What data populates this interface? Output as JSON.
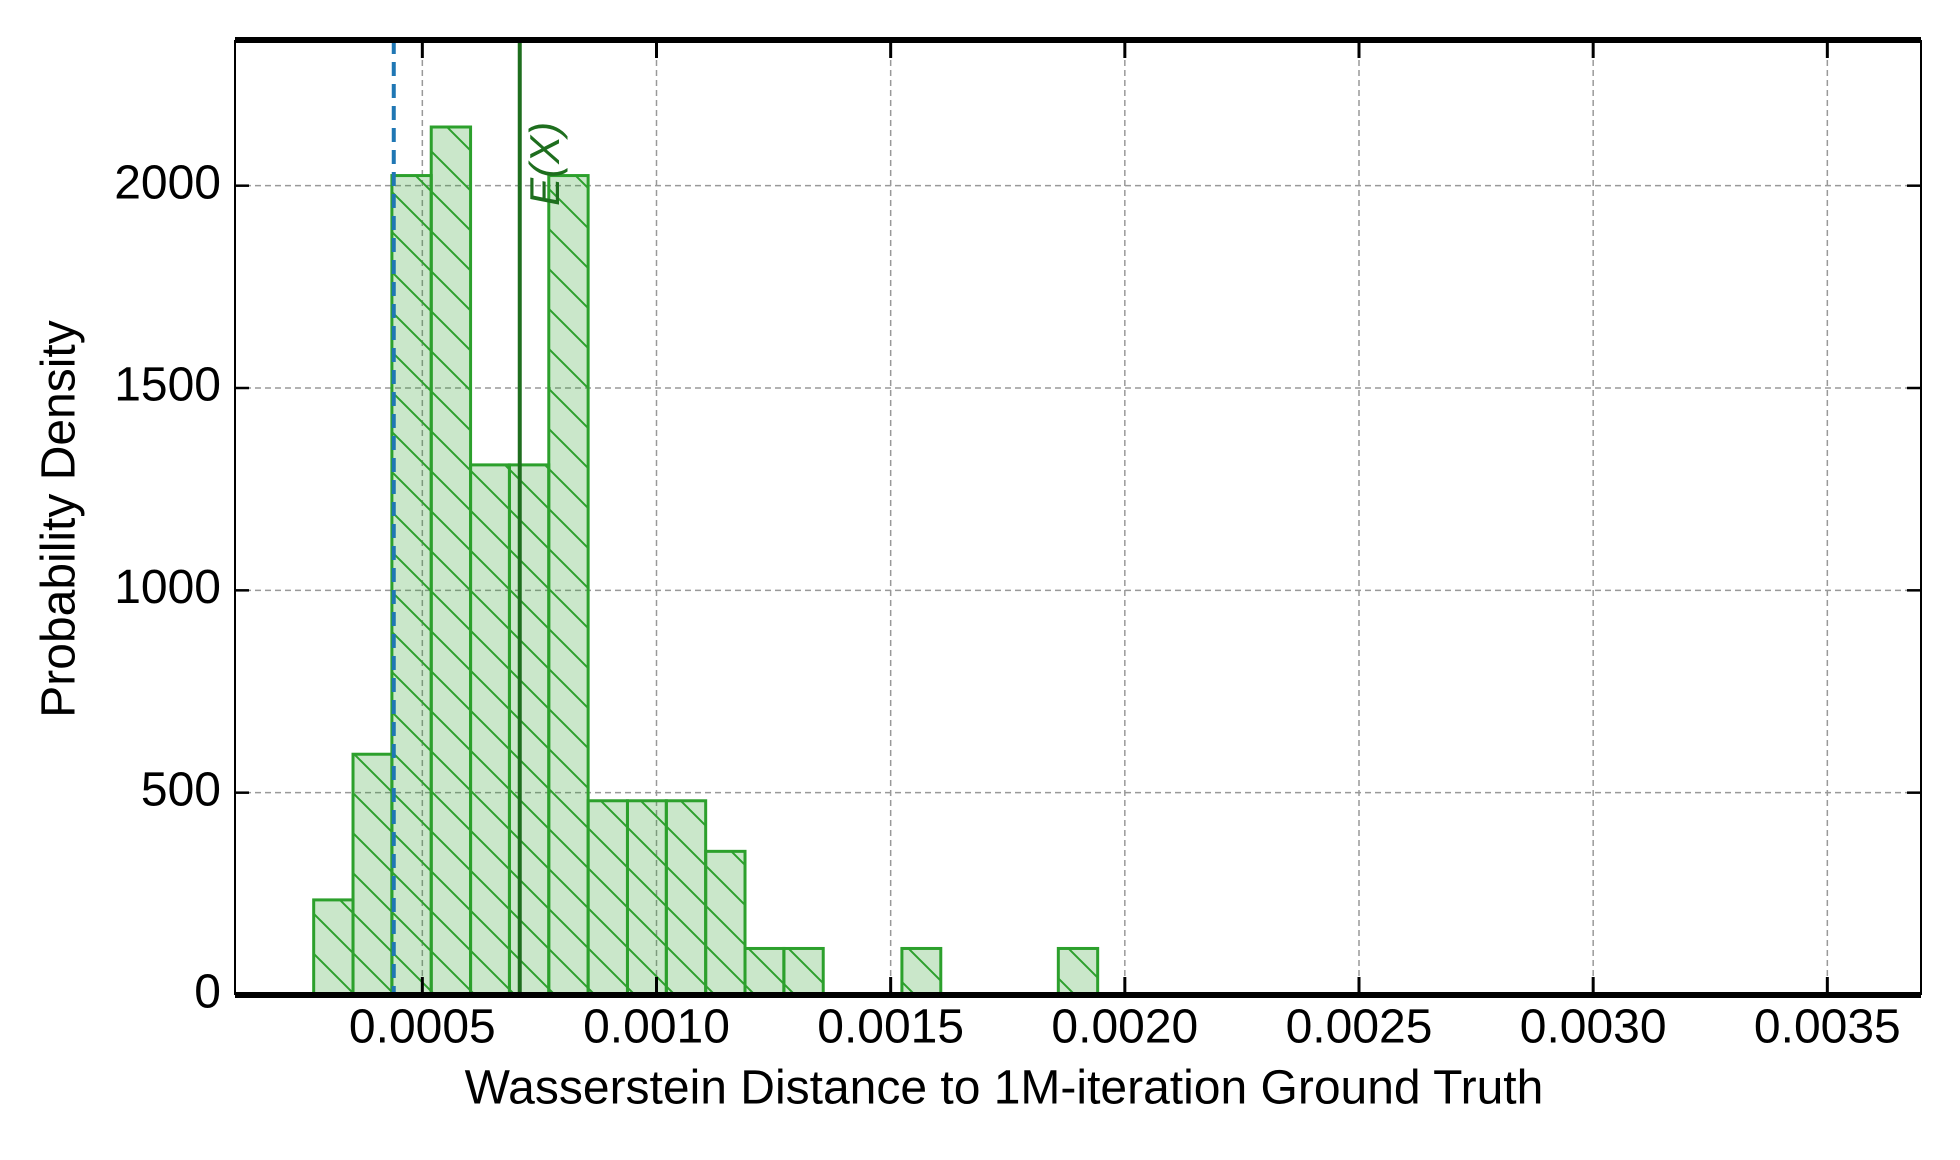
{
  "chart_data": {
    "type": "histogram",
    "xlabel": "Wasserstein Distance to 1M-iteration Ground Truth",
    "ylabel": "Probability Density",
    "bins": [
      0.000268,
      0.000352,
      0.000435,
      0.000519,
      0.000603,
      0.000686,
      0.00077,
      0.000854,
      0.000938,
      0.001021,
      0.001105,
      0.001189,
      0.001272,
      0.001356,
      0.00144,
      0.001524,
      0.001607,
      0.001691,
      0.001775,
      0.001858,
      0.001942
    ],
    "values": [
      235,
      595,
      2025,
      2145,
      1310,
      1310,
      2025,
      480,
      480,
      480,
      355,
      115,
      115,
      0,
      0,
      115,
      0,
      0,
      0,
      115
    ],
    "color": "#2ca02c",
    "hatch": true,
    "xlim": [
      0.0001,
      0.0037
    ],
    "ylim": [
      0,
      2360
    ],
    "xticks": [
      0.0005,
      {
        "value": 0.001,
        "label": "0.0010"
      },
      0.0015,
      {
        "value": 0.002,
        "label": "0.0020"
      },
      0.0025,
      {
        "value": 0.003,
        "label": "0.0030"
      },
      0.0035
    ],
    "yticks": [
      0,
      500,
      1000,
      1500,
      2000
    ],
    "grid": true,
    "reference_lines": [
      {
        "value": 0.000439,
        "color": "#1f77b4",
        "style": "dashed"
      },
      {
        "value": 0.000708,
        "color": "#1e6e1e",
        "style": "solid",
        "label": "E(X)"
      }
    ]
  }
}
